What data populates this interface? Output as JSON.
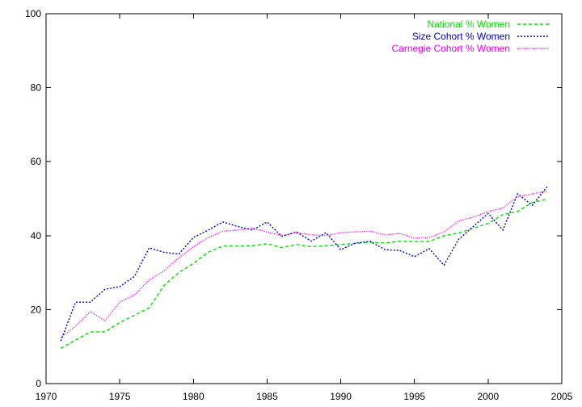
{
  "chart_data": {
    "type": "line",
    "title": "",
    "xlabel": "",
    "ylabel": "",
    "xlim": [
      1970,
      2005
    ],
    "ylim": [
      0,
      100
    ],
    "x_ticks": [
      1970,
      1975,
      1980,
      1985,
      1990,
      1995,
      2000,
      2005
    ],
    "y_ticks": [
      0,
      20,
      40,
      60,
      80,
      100
    ],
    "grid": false,
    "legend_position": "top-right",
    "series": [
      {
        "name": "National % Women",
        "color": "#00e000",
        "dash": "dashed",
        "x": [
          1971,
          1972,
          1973,
          1974,
          1975,
          1976,
          1977,
          1978,
          1979,
          1980,
          1981,
          1982,
          1983,
          1984,
          1985,
          1986,
          1987,
          1988,
          1989,
          1990,
          1991,
          1992,
          1993,
          1994,
          1995,
          1996,
          1997,
          1998,
          1999,
          2000,
          2001,
          2002,
          2003,
          2004
        ],
        "y": [
          9.5,
          11.8,
          14.0,
          14.0,
          16.5,
          18.5,
          20.5,
          26.5,
          30.0,
          32.5,
          35.5,
          37.2,
          37.2,
          37.3,
          37.8,
          36.8,
          37.6,
          37.0,
          37.3,
          37.6,
          37.9,
          38.2,
          38.0,
          38.5,
          38.4,
          38.4,
          40.0,
          40.7,
          42.0,
          43.3,
          45.7,
          46.5,
          49.0,
          49.8
        ]
      },
      {
        "name": "Size Cohort % Women",
        "color": "#0000c8",
        "dash": "dotted",
        "x": [
          1971,
          1972,
          1973,
          1974,
          1975,
          1976,
          1977,
          1978,
          1979,
          1980,
          1981,
          1982,
          1983,
          1984,
          1985,
          1986,
          1987,
          1988,
          1989,
          1990,
          1991,
          1992,
          1993,
          1994,
          1995,
          1996,
          1997,
          1998,
          1999,
          2000,
          2001,
          2002,
          2003,
          2004
        ],
        "y": [
          11.5,
          22.0,
          22.0,
          25.5,
          26.2,
          29.0,
          36.7,
          35.5,
          35.0,
          39.5,
          41.5,
          43.7,
          42.5,
          41.5,
          43.7,
          39.8,
          41.0,
          38.5,
          40.8,
          36.2,
          38.0,
          38.5,
          36.2,
          36.0,
          34.3,
          36.5,
          32.0,
          39.0,
          42.5,
          46.0,
          41.5,
          51.3,
          48.2,
          53.2
        ]
      },
      {
        "name": "Carnegie Cohort % Women",
        "color": "#f000f0",
        "dash": "fine-dotted",
        "x": [
          1971,
          1972,
          1973,
          1974,
          1975,
          1976,
          1977,
          1978,
          1979,
          1980,
          1981,
          1982,
          1983,
          1984,
          1985,
          1986,
          1987,
          1988,
          1989,
          1990,
          1991,
          1992,
          1993,
          1994,
          1995,
          1996,
          1997,
          1998,
          1999,
          2000,
          2001,
          2002,
          2003,
          2004
        ],
        "y": [
          12.5,
          15.5,
          19.5,
          17.0,
          22.0,
          24.0,
          28.0,
          30.5,
          34.0,
          37.0,
          39.5,
          41.2,
          41.5,
          42.0,
          41.0,
          40.0,
          40.8,
          40.2,
          40.0,
          40.8,
          41.0,
          41.2,
          40.2,
          40.6,
          39.3,
          39.5,
          41.0,
          44.0,
          45.0,
          46.5,
          47.5,
          50.5,
          51.3,
          52.0
        ]
      }
    ]
  }
}
